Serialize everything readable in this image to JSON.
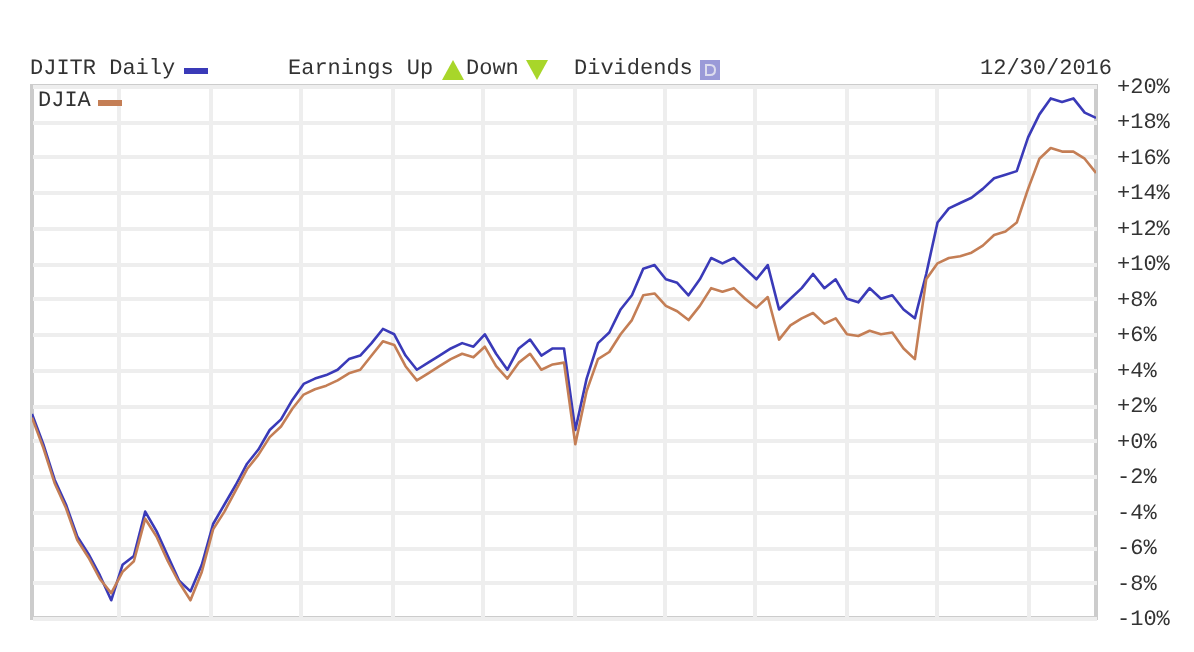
{
  "chart_data": {
    "type": "line",
    "categories": [
      null,
      null,
      null,
      null,
      null,
      null,
      null,
      null,
      null,
      null,
      null,
      null,
      null,
      null,
      null,
      null,
      null,
      null,
      null,
      null,
      null,
      null,
      null,
      null,
      null,
      null,
      null,
      null,
      null,
      null,
      null,
      null,
      null,
      null,
      null,
      null,
      null,
      null,
      null,
      null,
      null,
      null,
      null,
      null,
      null,
      null,
      null,
      null,
      null,
      null,
      null,
      null,
      null,
      null,
      null,
      null,
      null,
      null,
      null,
      null,
      null,
      null,
      null,
      null,
      null,
      null,
      null,
      null,
      null,
      null,
      null,
      null,
      null,
      null,
      null,
      null,
      null,
      null,
      null,
      null,
      null,
      null,
      null,
      null,
      null,
      null,
      null,
      null,
      null,
      null,
      null,
      null,
      null,
      null,
      null
    ],
    "series": [
      {
        "name": "DJITR Daily",
        "color": "#3a3ab8",
        "values": [
          1.5,
          -0.2,
          -2.2,
          -3.6,
          -5.4,
          -6.4,
          -7.6,
          -9.0,
          -7.0,
          -6.5,
          -4.0,
          -5.1,
          -6.5,
          -7.9,
          -8.5,
          -7.0,
          -4.7,
          -3.6,
          -2.5,
          -1.3,
          -0.5,
          0.6,
          1.2,
          2.3,
          3.2,
          3.5,
          3.7,
          4.0,
          4.6,
          4.8,
          5.5,
          6.3,
          6.0,
          4.8,
          4.0,
          4.4,
          4.8,
          5.2,
          5.5,
          5.3,
          6.0,
          4.9,
          4.0,
          5.2,
          5.7,
          4.8,
          5.2,
          5.2,
          0.6,
          3.5,
          5.5,
          6.1,
          7.4,
          8.2,
          9.7,
          9.9,
          9.1,
          8.9,
          8.2,
          9.1,
          10.3,
          10.0,
          10.3,
          9.7,
          9.1,
          9.9,
          7.4,
          8.0,
          8.6,
          9.4,
          8.6,
          9.1,
          8.0,
          7.8,
          8.6,
          8.0,
          8.2,
          7.4,
          6.9,
          9.4,
          12.3,
          13.1,
          13.4,
          13.7,
          14.2,
          14.8,
          15.0,
          15.2,
          17.1,
          18.4,
          19.3,
          19.1,
          19.3,
          18.5,
          18.2
        ]
      },
      {
        "name": "DJIA",
        "color": "#c47e55",
        "values": [
          1.3,
          -0.4,
          -2.4,
          -3.8,
          -5.6,
          -6.6,
          -7.8,
          -8.6,
          -7.4,
          -6.8,
          -4.4,
          -5.4,
          -6.8,
          -8.0,
          -9.0,
          -7.4,
          -5.0,
          -4.0,
          -2.8,
          -1.6,
          -0.8,
          0.2,
          0.8,
          1.8,
          2.6,
          2.9,
          3.1,
          3.4,
          3.8,
          4.0,
          4.8,
          5.6,
          5.4,
          4.2,
          3.4,
          3.8,
          4.2,
          4.6,
          4.9,
          4.7,
          5.3,
          4.2,
          3.5,
          4.4,
          4.9,
          4.0,
          4.3,
          4.4,
          -0.2,
          2.8,
          4.6,
          5.0,
          6.0,
          6.8,
          8.2,
          8.3,
          7.6,
          7.3,
          6.8,
          7.6,
          8.6,
          8.4,
          8.6,
          8.0,
          7.5,
          8.1,
          5.7,
          6.5,
          6.9,
          7.2,
          6.6,
          6.9,
          6.0,
          5.9,
          6.2,
          6.0,
          6.1,
          5.2,
          4.6,
          9.1,
          10.0,
          10.3,
          10.4,
          10.6,
          11.0,
          11.6,
          11.8,
          12.3,
          14.2,
          15.9,
          16.5,
          16.3,
          16.3,
          15.9,
          15.1
        ]
      }
    ],
    "ylim": [
      -10,
      20
    ],
    "yticks": [
      {
        "value": 20,
        "label": "+20%"
      },
      {
        "value": 18,
        "label": "+18%"
      },
      {
        "value": 16,
        "label": "+16%"
      },
      {
        "value": 14,
        "label": "+14%"
      },
      {
        "value": 12,
        "label": "+12%"
      },
      {
        "value": 10,
        "label": "+10%"
      },
      {
        "value": 8,
        "label": "+8%"
      },
      {
        "value": 6,
        "label": "+6%"
      },
      {
        "value": 4,
        "label": "+4%"
      },
      {
        "value": 2,
        "label": "+2%"
      },
      {
        "value": 0,
        "label": "+0%"
      },
      {
        "value": -2,
        "label": "-2%"
      },
      {
        "value": -4,
        "label": "-4%"
      },
      {
        "value": -6,
        "label": "-6%"
      },
      {
        "value": -8,
        "label": "-8%"
      },
      {
        "value": -10,
        "label": "-10%"
      }
    ],
    "grid": true,
    "legend": "top left",
    "annotations": [
      "Earnings Up",
      "Down",
      "Dividends",
      "12/30/2016"
    ]
  }
}
